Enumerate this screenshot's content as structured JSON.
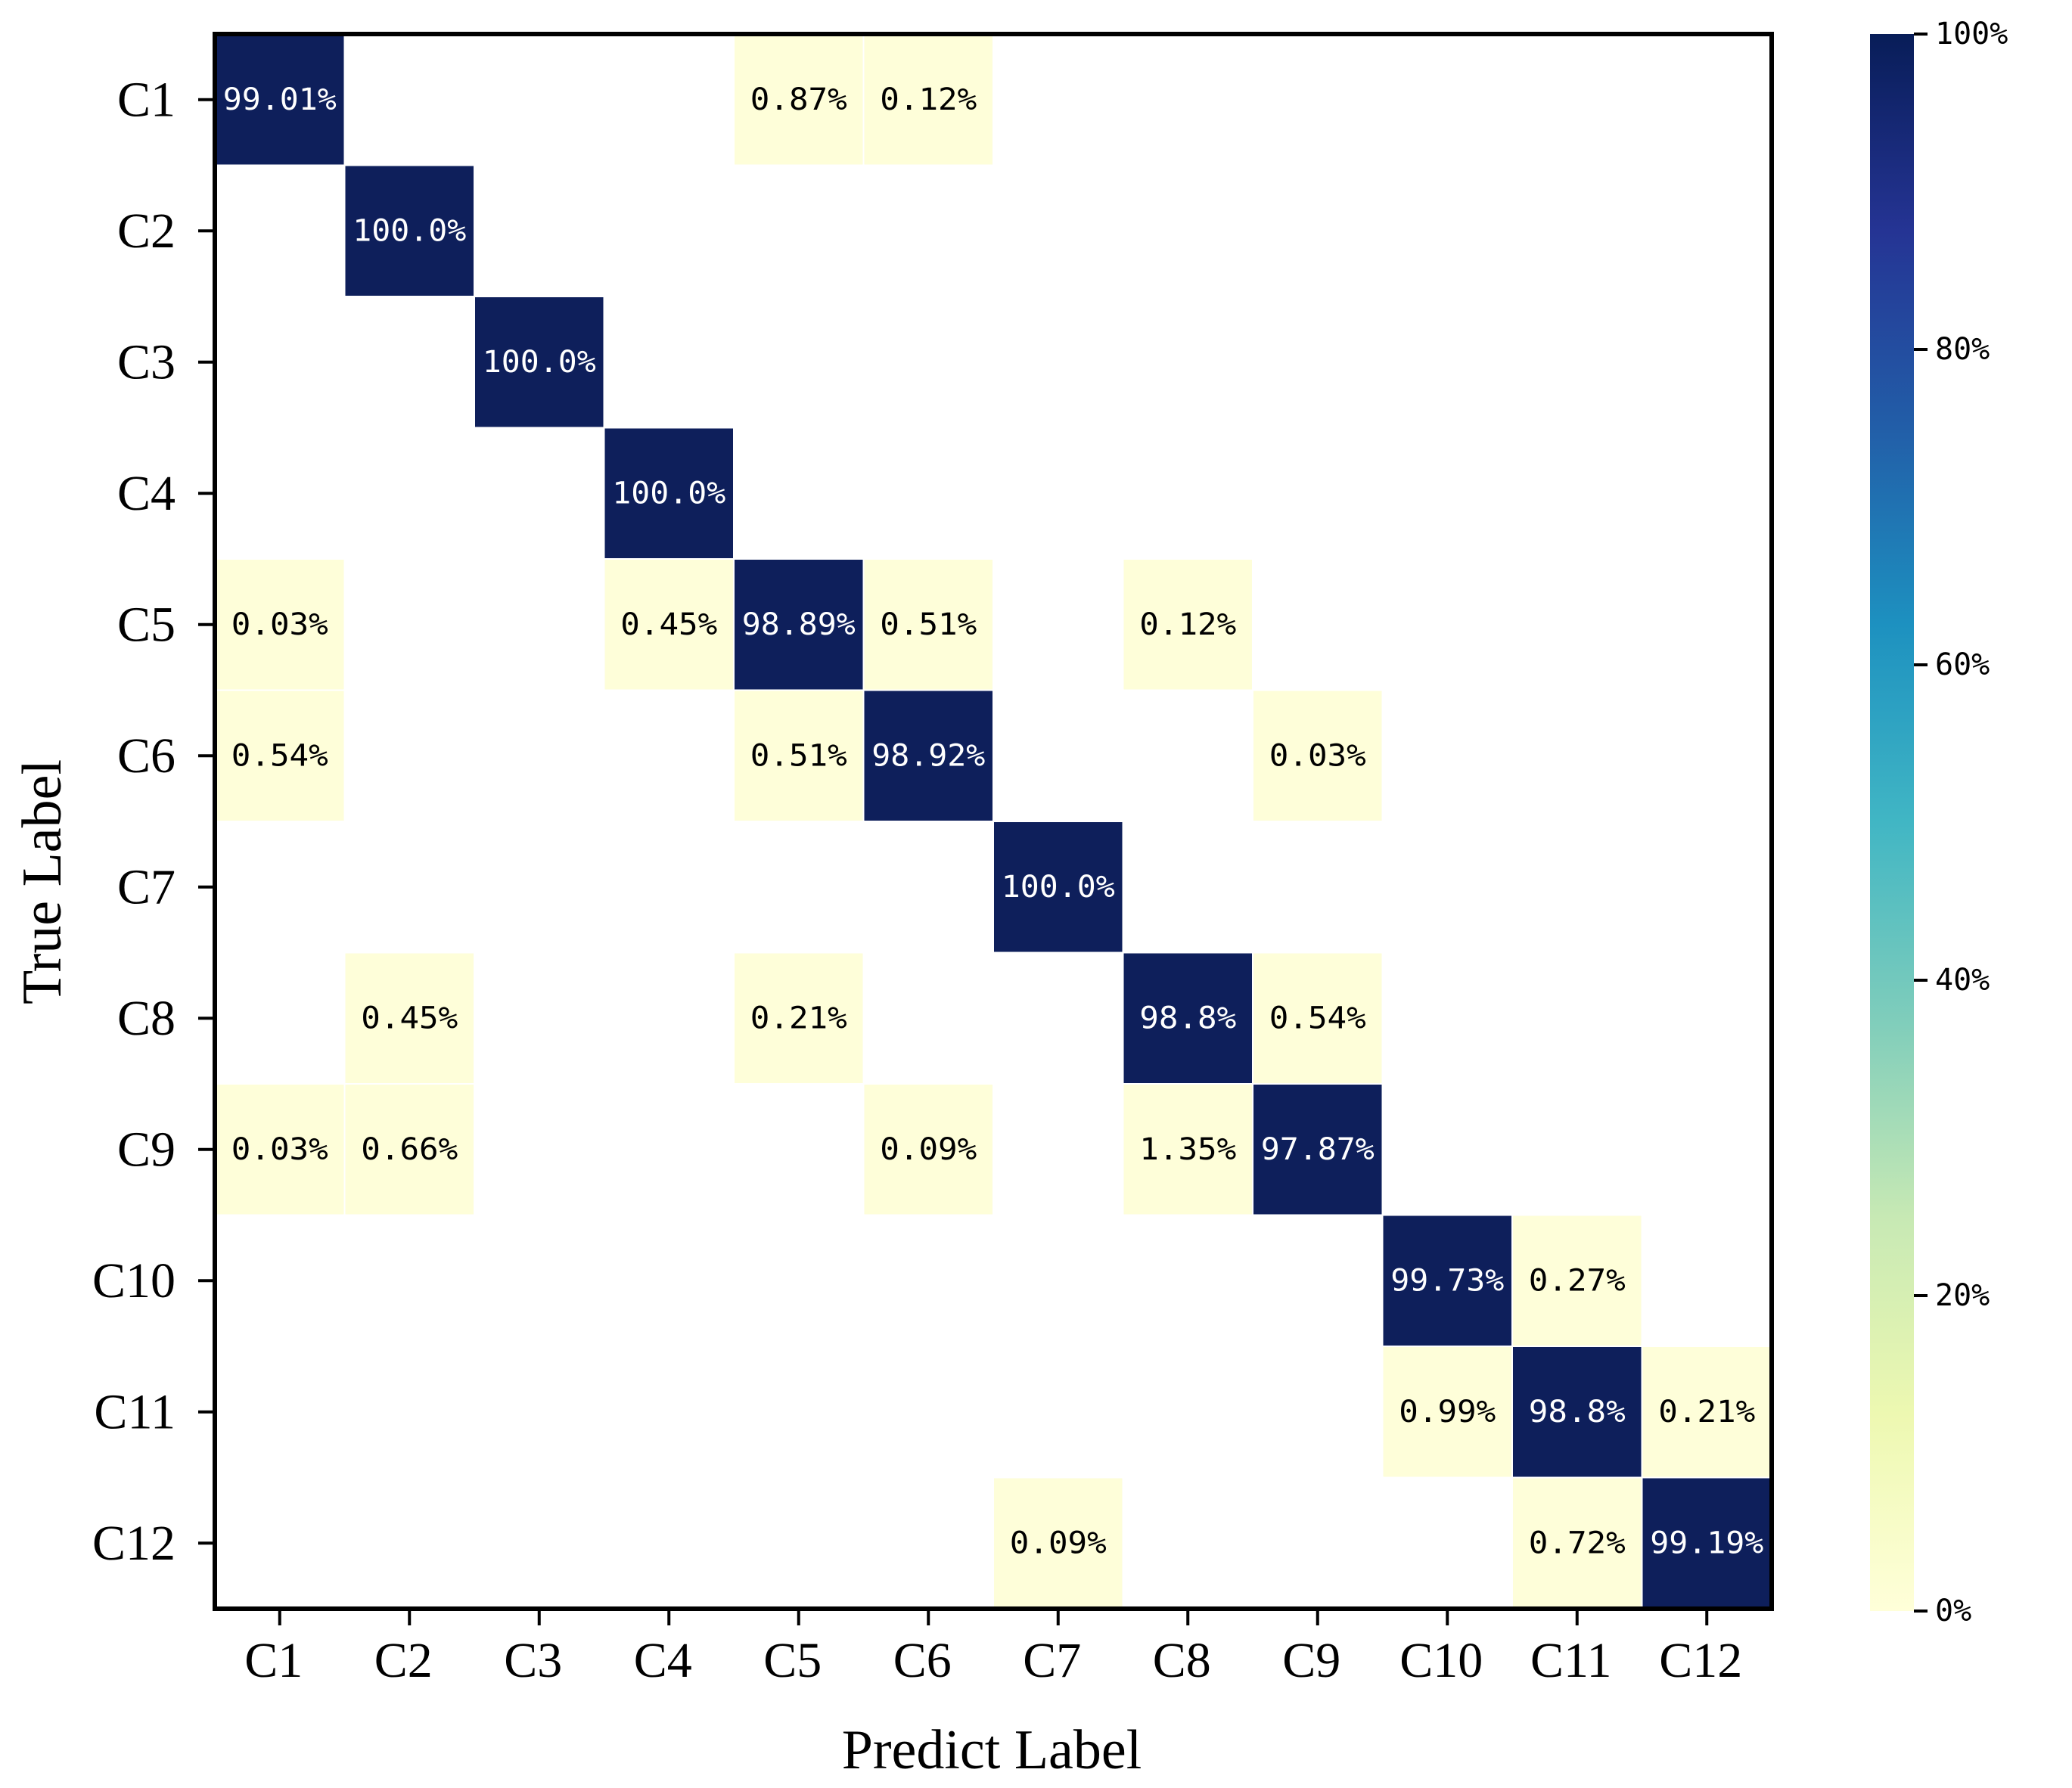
{
  "chart_data": {
    "type": "heatmap",
    "title": "",
    "xlabel": "Predict Label",
    "ylabel": "True Label",
    "x_categories": [
      "C1",
      "C2",
      "C3",
      "C4",
      "C5",
      "C6",
      "C7",
      "C8",
      "C9",
      "C10",
      "C11",
      "C12"
    ],
    "y_categories": [
      "C1",
      "C2",
      "C3",
      "C4",
      "C5",
      "C6",
      "C7",
      "C8",
      "C9",
      "C10",
      "C11",
      "C12"
    ],
    "values": [
      [
        99.01,
        0,
        0,
        0,
        0.87,
        0.12,
        0,
        0,
        0,
        0,
        0,
        0
      ],
      [
        0,
        100.0,
        0,
        0,
        0,
        0,
        0,
        0,
        0,
        0,
        0,
        0
      ],
      [
        0,
        0,
        100.0,
        0,
        0,
        0,
        0,
        0,
        0,
        0,
        0,
        0
      ],
      [
        0,
        0,
        0,
        100.0,
        0,
        0,
        0,
        0,
        0,
        0,
        0,
        0
      ],
      [
        0.03,
        0,
        0,
        0.45,
        98.89,
        0.51,
        0,
        0.12,
        0,
        0,
        0,
        0
      ],
      [
        0.54,
        0,
        0,
        0,
        0.51,
        98.92,
        0,
        0,
        0.03,
        0,
        0,
        0
      ],
      [
        0,
        0,
        0,
        0,
        0,
        0,
        100.0,
        0,
        0,
        0,
        0,
        0
      ],
      [
        0,
        0.45,
        0,
        0,
        0.21,
        0,
        0,
        98.8,
        0.54,
        0,
        0,
        0
      ],
      [
        0.03,
        0.66,
        0,
        0,
        0,
        0.09,
        0,
        1.35,
        97.87,
        0,
        0,
        0
      ],
      [
        0,
        0,
        0,
        0,
        0,
        0,
        0,
        0,
        0,
        99.73,
        0.27,
        0
      ],
      [
        0,
        0,
        0,
        0,
        0,
        0,
        0,
        0,
        0,
        0.99,
        98.8,
        0.21
      ],
      [
        0,
        0,
        0,
        0,
        0,
        0,
        0.09,
        0,
        0,
        0,
        0.72,
        99.19
      ]
    ],
    "cell_labels": [
      [
        "99.01%",
        "",
        "",
        "",
        "0.87%",
        "0.12%",
        "",
        "",
        "",
        "",
        "",
        ""
      ],
      [
        "",
        "100.0%",
        "",
        "",
        "",
        "",
        "",
        "",
        "",
        "",
        "",
        ""
      ],
      [
        "",
        "",
        "100.0%",
        "",
        "",
        "",
        "",
        "",
        "",
        "",
        "",
        ""
      ],
      [
        "",
        "",
        "",
        "100.0%",
        "",
        "",
        "",
        "",
        "",
        "",
        "",
        ""
      ],
      [
        "0.03%",
        "",
        "",
        "0.45%",
        "98.89%",
        "0.51%",
        "",
        "0.12%",
        "",
        "",
        "",
        ""
      ],
      [
        "0.54%",
        "",
        "",
        "",
        "0.51%",
        "98.92%",
        "",
        "",
        "0.03%",
        "",
        "",
        ""
      ],
      [
        "",
        "",
        "",
        "",
        "",
        "",
        "100.0%",
        "",
        "",
        "",
        "",
        ""
      ],
      [
        "",
        "0.45%",
        "",
        "",
        "0.21%",
        "",
        "",
        "98.8%",
        "0.54%",
        "",
        "",
        ""
      ],
      [
        "0.03%",
        "0.66%",
        "",
        "",
        "",
        "0.09%",
        "",
        "1.35%",
        "97.87%",
        "",
        "",
        ""
      ],
      [
        "",
        "",
        "",
        "",
        "",
        "",
        "",
        "",
        "",
        "99.73%",
        "0.27%",
        ""
      ],
      [
        "",
        "",
        "",
        "",
        "",
        "",
        "",
        "",
        "",
        "0.99%",
        "98.8%",
        "0.21%"
      ],
      [
        "",
        "",
        "",
        "",
        "",
        "",
        "0.09%",
        "",
        "",
        "",
        "0.72%",
        "99.19%"
      ]
    ],
    "colorbar": {
      "min": 0,
      "max": 100,
      "ticks": [
        0,
        20,
        40,
        60,
        80,
        100
      ],
      "tick_labels": [
        "0%",
        "20%",
        "40%",
        "60%",
        "80%",
        "100%"
      ],
      "colormap": "YlGnBu",
      "stops": [
        "#ffffd9",
        "#edf8b1",
        "#c7e9b4",
        "#7fcdbb",
        "#41b6c4",
        "#1d91c0",
        "#225ea8",
        "#253494",
        "#081d58"
      ]
    },
    "colors": {
      "high_cell": "#0e1f5b",
      "low_cell": "#fefed9",
      "zero_cell": "#ffffff",
      "high_text": "#ffffff",
      "low_text": "#000000"
    }
  }
}
